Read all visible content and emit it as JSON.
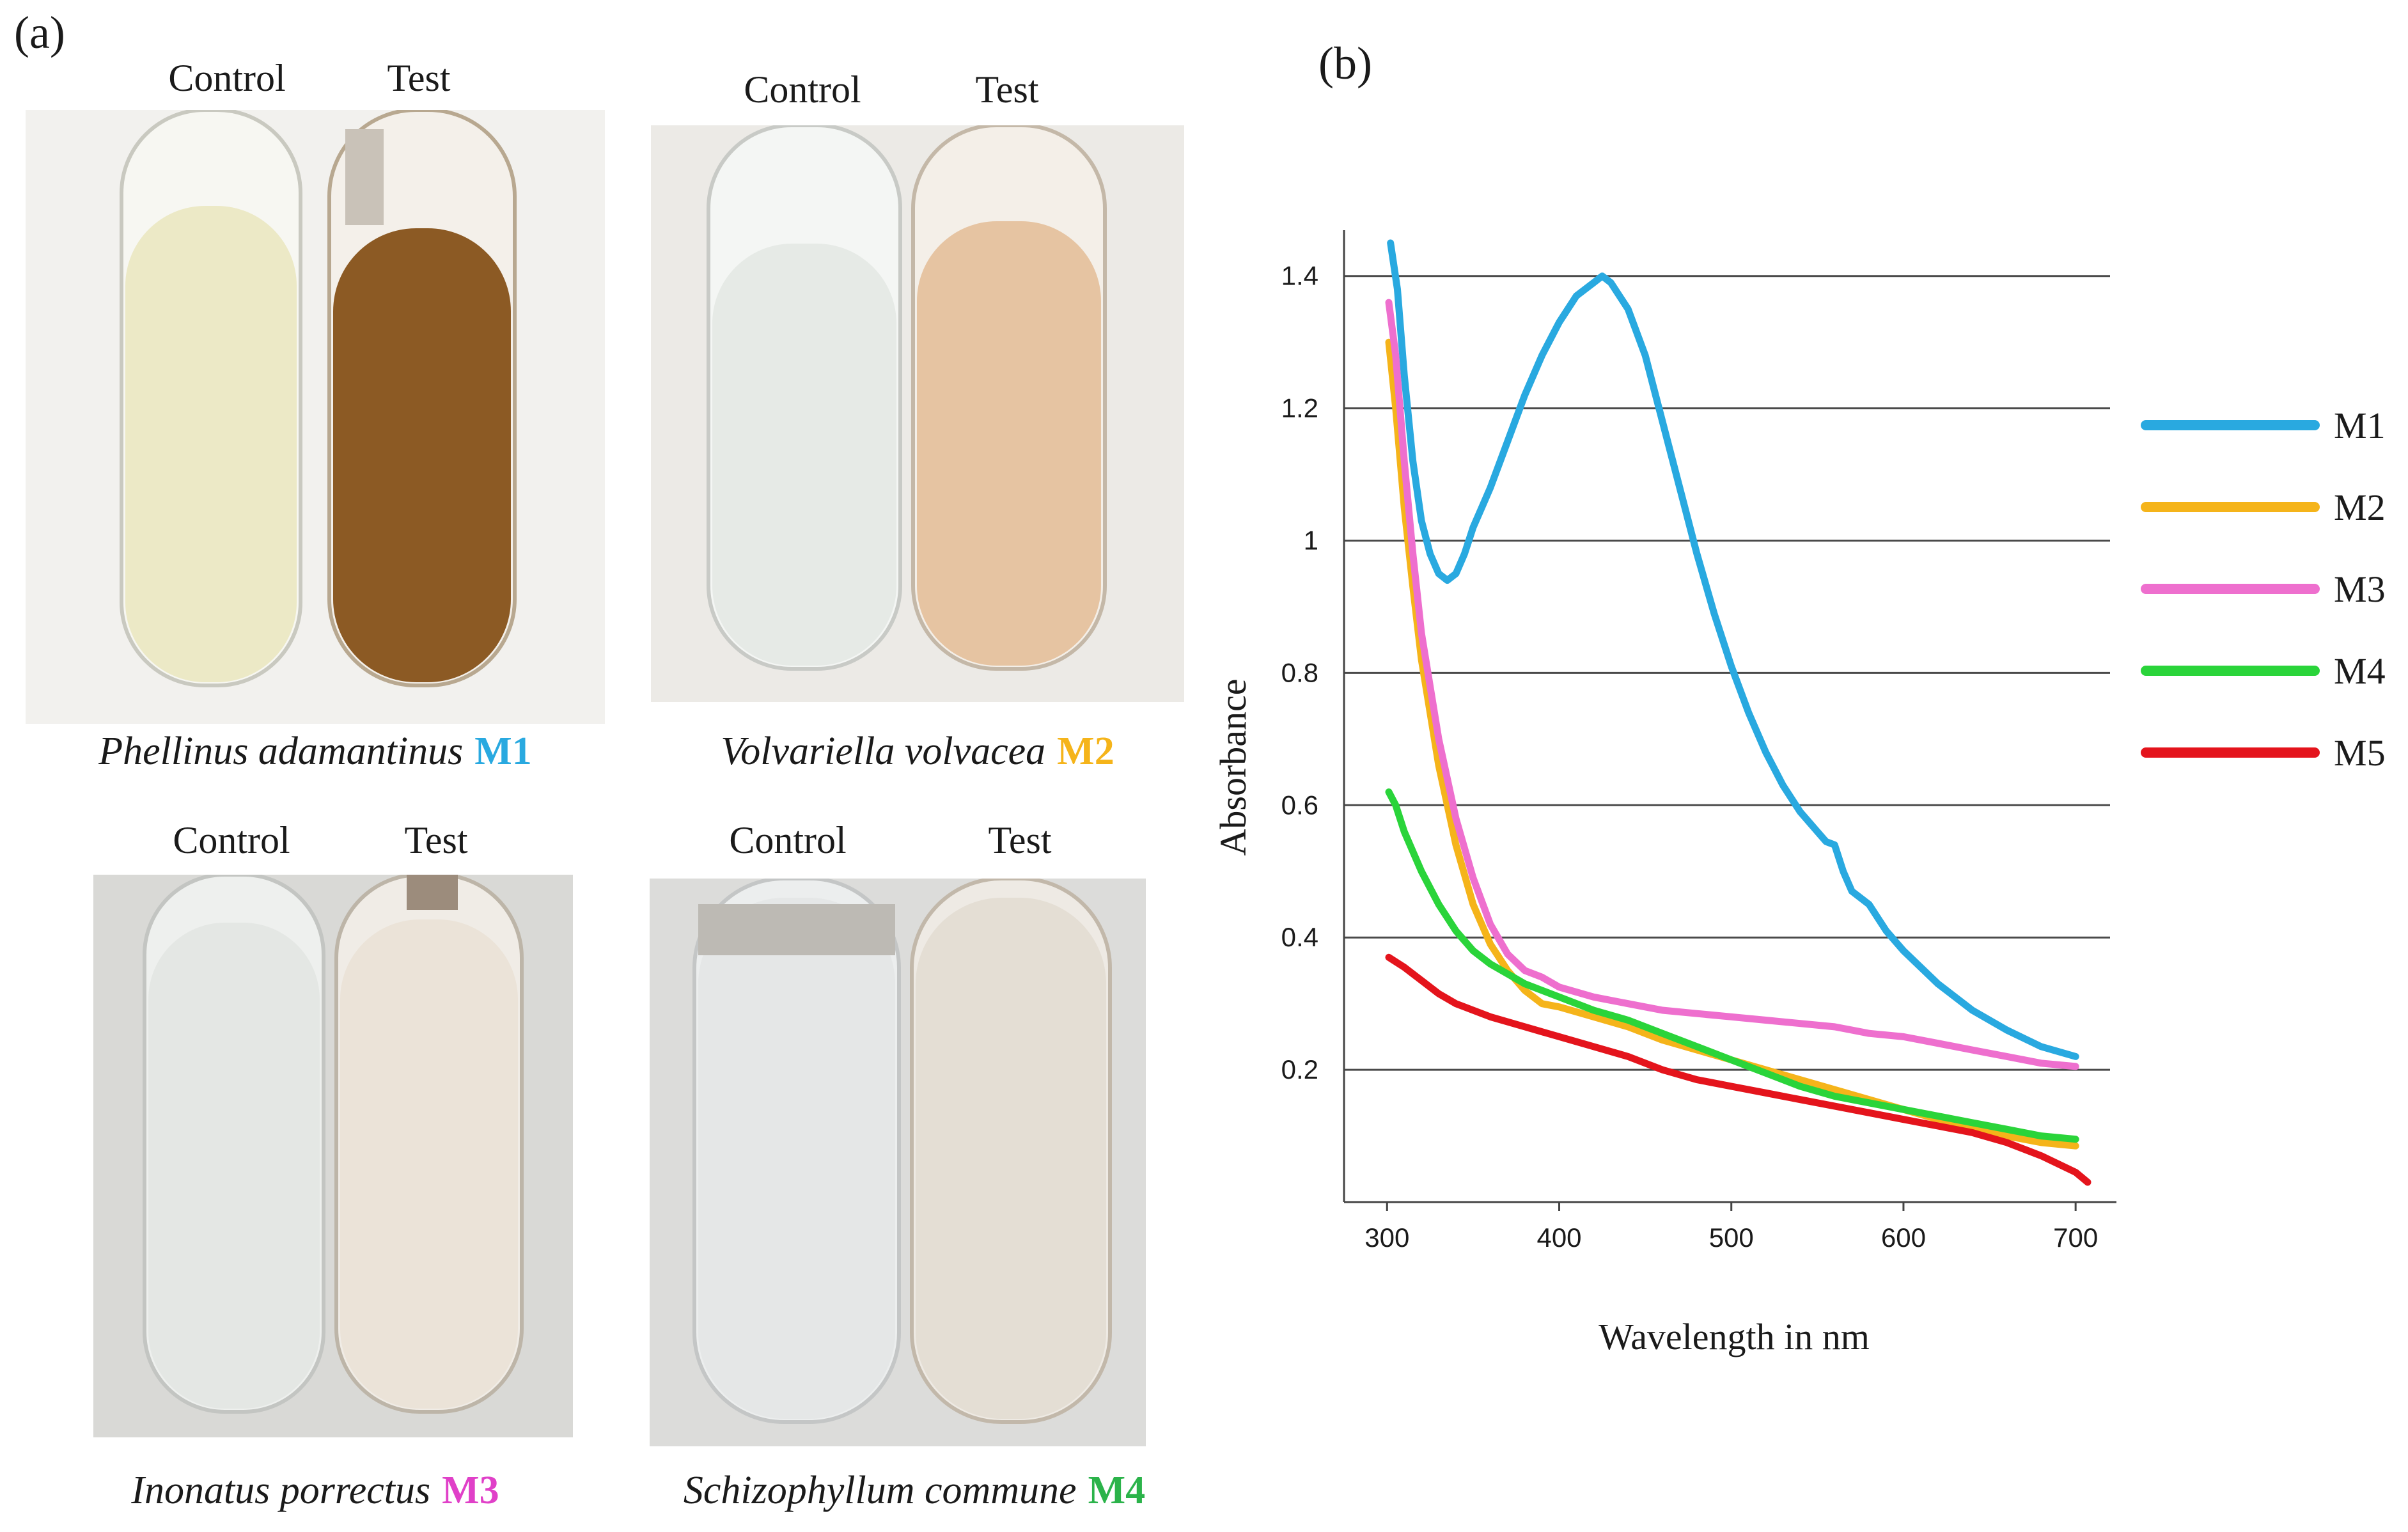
{
  "panel_a": {
    "letter": "(a)",
    "photos": [
      {
        "control_label": "Control",
        "test_label": "Test",
        "species": "Phellinus adamantinus",
        "code": "M1",
        "code_color": "#29a9e0",
        "control_liquid": "#ece9c6",
        "test_liquid": "#8c5a24",
        "background": "#f2f1ee"
      },
      {
        "control_label": "Control",
        "test_label": "Test",
        "species": "Volvariella volvacea",
        "code": "M2",
        "code_color": "#f5b41a",
        "control_liquid": "#e6eae6",
        "test_liquid": "#e6c4a2",
        "background": "#eceae6"
      },
      {
        "control_label": "Control",
        "test_label": "Test",
        "species": "Inonatus porrectus",
        "code": "M3",
        "code_color": "#e040c8",
        "control_liquid": "#e4e7e4",
        "test_liquid": "#ebe3d8",
        "background": "#d9d9d6"
      },
      {
        "control_label": "Control",
        "test_label": "Test",
        "species": "Schizophyllum commune",
        "code": "M4",
        "code_color": "#2bb34a",
        "control_liquid": "#e5e7e7",
        "test_liquid": "#e4ded4",
        "background": "#dcdcda"
      }
    ]
  },
  "panel_b": {
    "letter": "(b)"
  },
  "chart_data": {
    "type": "line",
    "title": "",
    "xlabel": "Wavelength in nm",
    "ylabel": "Absorbance",
    "xlim": [
      275,
      720
    ],
    "ylim": [
      0.0,
      1.45
    ],
    "xticks": [
      300,
      400,
      500,
      600,
      700
    ],
    "yticks": [
      0.2,
      0.4,
      0.6,
      0.8,
      1,
      1.2,
      1.4
    ],
    "ytick_labels": [
      "0.2",
      "0.4",
      "0.6",
      "0.8",
      "1",
      "1.2",
      "1.4"
    ],
    "grid": "horizontal",
    "legend_position": "right",
    "series": [
      {
        "name": "M1",
        "color": "#29a9e0",
        "x": [
          302,
          306,
          310,
          315,
          320,
          325,
          330,
          335,
          340,
          345,
          350,
          355,
          360,
          370,
          380,
          390,
          400,
          410,
          420,
          425,
          430,
          440,
          450,
          460,
          470,
          480,
          490,
          500,
          510,
          520,
          530,
          540,
          550,
          555,
          560,
          565,
          570,
          580,
          590,
          600,
          620,
          640,
          660,
          680,
          700
        ],
        "y": [
          1.45,
          1.38,
          1.25,
          1.12,
          1.03,
          0.98,
          0.95,
          0.94,
          0.95,
          0.98,
          1.02,
          1.05,
          1.08,
          1.15,
          1.22,
          1.28,
          1.33,
          1.37,
          1.39,
          1.4,
          1.39,
          1.35,
          1.28,
          1.18,
          1.08,
          0.98,
          0.89,
          0.81,
          0.74,
          0.68,
          0.63,
          0.59,
          0.56,
          0.545,
          0.54,
          0.5,
          0.47,
          0.45,
          0.41,
          0.38,
          0.33,
          0.29,
          0.26,
          0.235,
          0.22
        ]
      },
      {
        "name": "M2",
        "color": "#f5b41a",
        "x": [
          301,
          305,
          310,
          315,
          320,
          330,
          340,
          350,
          360,
          370,
          380,
          390,
          400,
          420,
          440,
          460,
          480,
          500,
          520,
          540,
          560,
          580,
          600,
          620,
          640,
          660,
          680,
          700
        ],
        "y": [
          1.3,
          1.2,
          1.05,
          0.93,
          0.82,
          0.66,
          0.54,
          0.45,
          0.39,
          0.35,
          0.32,
          0.3,
          0.295,
          0.28,
          0.265,
          0.245,
          0.23,
          0.215,
          0.2,
          0.185,
          0.17,
          0.155,
          0.14,
          0.125,
          0.11,
          0.1,
          0.09,
          0.085
        ]
      },
      {
        "name": "M3",
        "color": "#ee6fce",
        "x": [
          301,
          305,
          310,
          315,
          320,
          330,
          340,
          350,
          360,
          370,
          380,
          390,
          400,
          420,
          440,
          460,
          480,
          500,
          520,
          540,
          560,
          570,
          580,
          600,
          620,
          640,
          660,
          680,
          700
        ],
        "y": [
          1.36,
          1.28,
          1.12,
          0.98,
          0.86,
          0.7,
          0.58,
          0.49,
          0.42,
          0.375,
          0.35,
          0.34,
          0.325,
          0.31,
          0.3,
          0.29,
          0.285,
          0.28,
          0.275,
          0.27,
          0.265,
          0.26,
          0.255,
          0.25,
          0.24,
          0.23,
          0.22,
          0.21,
          0.205
        ]
      },
      {
        "name": "M4",
        "color": "#2ad43a",
        "x": [
          301,
          305,
          310,
          320,
          330,
          340,
          350,
          360,
          370,
          380,
          400,
          420,
          440,
          460,
          480,
          500,
          520,
          540,
          560,
          580,
          600,
          620,
          640,
          660,
          680,
          700
        ],
        "y": [
          0.62,
          0.6,
          0.56,
          0.5,
          0.45,
          0.41,
          0.38,
          0.36,
          0.345,
          0.33,
          0.31,
          0.29,
          0.275,
          0.255,
          0.235,
          0.215,
          0.195,
          0.175,
          0.16,
          0.15,
          0.14,
          0.13,
          0.12,
          0.11,
          0.1,
          0.095
        ]
      },
      {
        "name": "M5",
        "color": "#e4141c",
        "x": [
          301,
          310,
          320,
          330,
          340,
          350,
          360,
          380,
          400,
          420,
          440,
          460,
          480,
          500,
          520,
          540,
          560,
          580,
          600,
          620,
          640,
          660,
          680,
          700,
          707
        ],
        "y": [
          0.37,
          0.355,
          0.335,
          0.315,
          0.3,
          0.29,
          0.28,
          0.265,
          0.25,
          0.235,
          0.22,
          0.2,
          0.185,
          0.175,
          0.165,
          0.155,
          0.145,
          0.135,
          0.125,
          0.115,
          0.105,
          0.09,
          0.07,
          0.045,
          0.03
        ]
      }
    ]
  }
}
